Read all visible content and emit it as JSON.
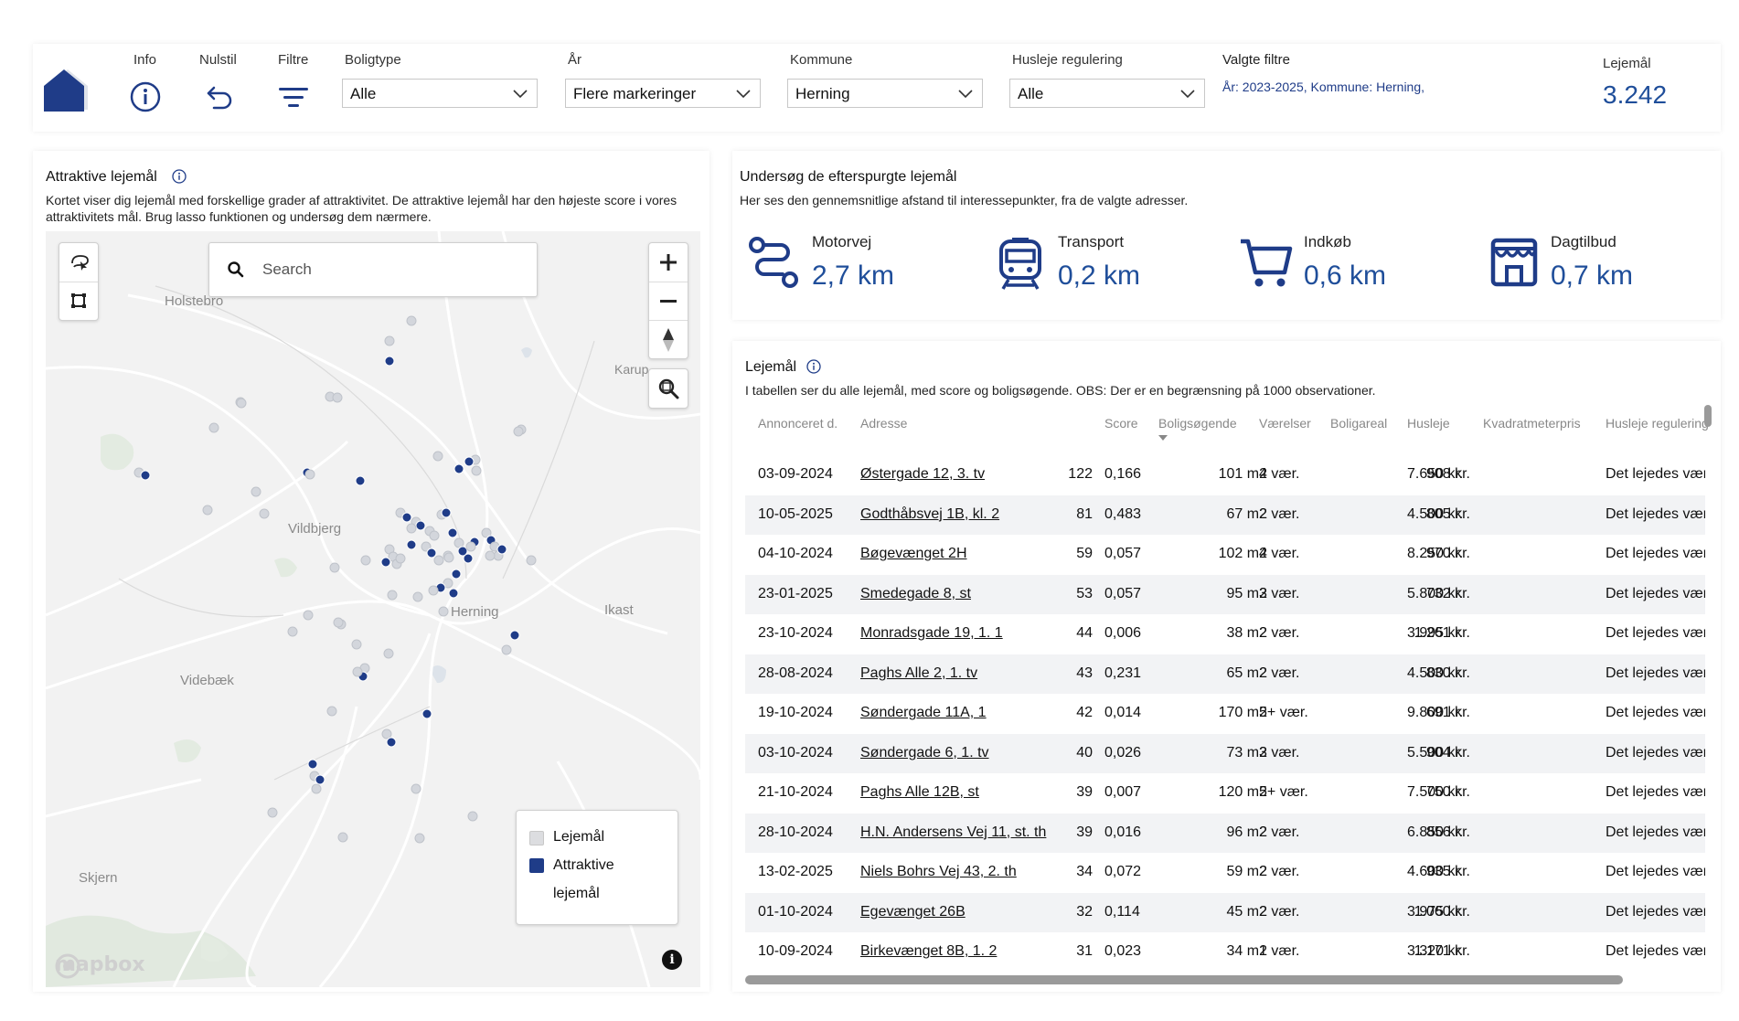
{
  "header": {
    "info_label": "Info",
    "nulstil_label": "Nulstil",
    "filtre_label": "Filtre",
    "filters": [
      {
        "label": "Boligtype",
        "value": "Alle"
      },
      {
        "label": "År",
        "value": "Flere markeringer"
      },
      {
        "label": "Kommune",
        "value": "Herning"
      },
      {
        "label": "Husleje regulering",
        "value": "Alle"
      }
    ],
    "valgte_title": "Valgte filtre",
    "valgte_text": "År: 2023-2025, Kommune: Herning,",
    "count_label": "Lejemål",
    "count_value": "3.242"
  },
  "map_panel": {
    "title": "Attraktive lejemål",
    "description": "Kortet viser dig lejemål med forskellige grader af attraktivitet. De attraktive lejemål har den højeste score i vores attraktivitets mål. Brug lasso funktionen og undersøg dem nærmere.",
    "search_placeholder": "Search",
    "towns": [
      "Holstebro",
      "Karup",
      "Vildbjerg",
      "Herning",
      "Ikast",
      "Videbæk",
      "Skjern"
    ],
    "legend": {
      "item1": "Lejemål",
      "item2": "Attraktive lejemål"
    },
    "attribution": "mapbox",
    "info_glyph": "i",
    "colors": {
      "normal": "#d3d6dc",
      "attractive": "#1f3c88"
    }
  },
  "poi_panel": {
    "title": "Undersøg de efterspurgte lejemål",
    "description": "Her ses den gennemsnitlige afstand til interessepunkter, fra de valgte adresser.",
    "items": [
      {
        "label": "Motorvej",
        "value": "2,7 km",
        "icon": "route-icon"
      },
      {
        "label": "Transport",
        "value": "0,2 km",
        "icon": "train-icon"
      },
      {
        "label": "Indkøb",
        "value": "0,6 km",
        "icon": "cart-icon"
      },
      {
        "label": "Dagtilbud",
        "value": "0,7 km",
        "icon": "daycare-icon"
      }
    ]
  },
  "table_panel": {
    "title": "Lejemål",
    "description": "I tabellen ser du alle lejemål, med score og boligsøgende. OBS: Der er en begrænsning på 1000 observationer.",
    "columns": [
      "Annonceret d.",
      "Adresse",
      "Score",
      "Boligsøgende",
      "Værelser",
      "Boligareal",
      "Husleje",
      "Kvadratmeterpris",
      "Husleje regulering"
    ],
    "rows": [
      {
        "date": "03-09-2024",
        "address": "Østergade 12, 3. tv",
        "score": "0,166",
        "seekers": "122",
        "rooms": "4 vær.",
        "area": "101 m2",
        "rent": "7.650 kr.",
        "sqm": "908 kr.",
        "reg": "Det lejedes værdi"
      },
      {
        "date": "10-05-2025",
        "address": "Godthåbsvej 1B, kl. 2",
        "score": "0,483",
        "seekers": "81",
        "rooms": "2 vær.",
        "area": "67 m2",
        "rent": "4.500 kr.",
        "sqm": "805 kr.",
        "reg": "Det lejedes værdi"
      },
      {
        "date": "04-10-2024",
        "address": "Bøgevænget 2H",
        "score": "0,057",
        "seekers": "59",
        "rooms": "4 vær.",
        "area": "102 m2",
        "rent": "8.250 kr.",
        "sqm": "970 kr.",
        "reg": "Det lejedes værdi"
      },
      {
        "date": "23-01-2025",
        "address": "Smedegade 8, st",
        "score": "0,057",
        "seekers": "53",
        "rooms": "3 vær.",
        "area": "95 m2",
        "rent": "5.800 kr.",
        "sqm": "732 kr.",
        "reg": "Det lejedes værdi"
      },
      {
        "date": "23-10-2024",
        "address": "Monradsgade 19, 1. 1",
        "score": "0,006",
        "seekers": "44",
        "rooms": "2 vær.",
        "area": "38 m2",
        "rent": "3.995 kr.",
        "sqm": "1.261 kr.",
        "reg": "Det lejedes værdi"
      },
      {
        "date": "28-08-2024",
        "address": "Paghs Alle 2, 1. tv",
        "score": "0,231",
        "seekers": "43",
        "rooms": "2 vær.",
        "area": "65 m2",
        "rent": "4.500 kr.",
        "sqm": "830 kr.",
        "reg": "Det lejedes værdi"
      },
      {
        "date": "19-10-2024",
        "address": "Søndergade 11A, 1",
        "score": "0,014",
        "seekers": "42",
        "rooms": "5+ vær.",
        "area": "170 m2",
        "rent": "9.800 kr.",
        "sqm": "691 kr.",
        "reg": "Det lejedes værdi"
      },
      {
        "date": "03-10-2024",
        "address": "Søndergade 6, 1. tv",
        "score": "0,026",
        "seekers": "40",
        "rooms": "3 vær.",
        "area": "73 m2",
        "rent": "5.500 kr.",
        "sqm": "904 kr.",
        "reg": "Det lejedes værdi"
      },
      {
        "date": "21-10-2024",
        "address": "Paghs Alle 12B, st",
        "score": "0,007",
        "seekers": "39",
        "rooms": "5+ vær.",
        "area": "120 m2",
        "rent": "7.500 kr.",
        "sqm": "750 kr.",
        "reg": "Det lejedes værdi"
      },
      {
        "date": "28-10-2024",
        "address": "H.N. Andersens Vej 11, st. th",
        "score": "0,016",
        "seekers": "39",
        "rooms": "2 vær.",
        "area": "96 m2",
        "rent": "6.850 kr.",
        "sqm": "856 kr.",
        "reg": "Det lejedes værdi"
      },
      {
        "date": "13-02-2025",
        "address": "Niels Bohrs Vej 43, 2. th",
        "score": "0,072",
        "seekers": "34",
        "rooms": "2 vær.",
        "area": "59 m2",
        "rent": "4.600 kr.",
        "sqm": "935 kr.",
        "reg": "Det lejedes værdi"
      },
      {
        "date": "01-10-2024",
        "address": "Egevænget 26B",
        "score": "0,114",
        "seekers": "32",
        "rooms": "2 vær.",
        "area": "45 m2",
        "rent": "3.975 kr.",
        "sqm": "1.060 kr.",
        "reg": "Det lejedes værdi"
      },
      {
        "date": "10-09-2024",
        "address": "Birkevænget 8B, 1. 2",
        "score": "0,023",
        "seekers": "31",
        "rooms": "1 vær.",
        "area": "34 m2",
        "rent": "3.320 kr.",
        "sqm": "1.171 kr.",
        "reg": "Det lejedes værdi"
      }
    ]
  }
}
